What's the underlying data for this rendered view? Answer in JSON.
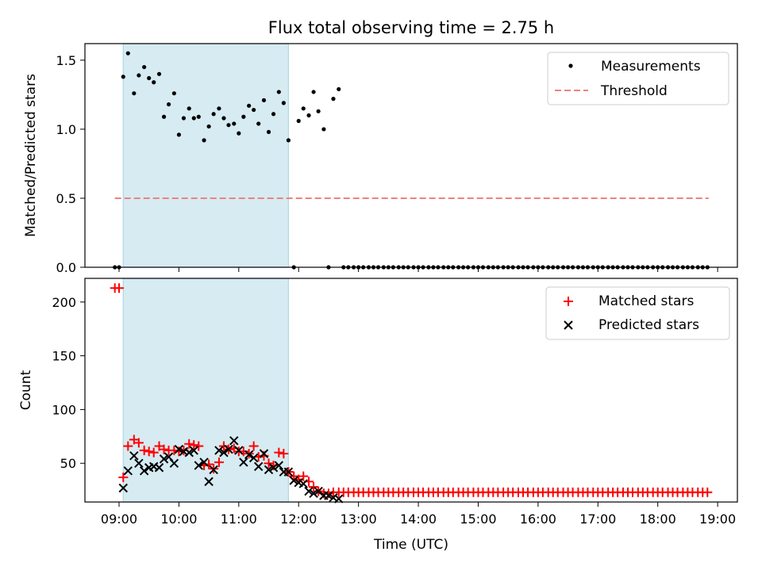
{
  "title": "Flux total observing time = 2.75 h",
  "colors": {
    "measurement": "#000000",
    "threshold": "#f08080",
    "matched": "#ff0000",
    "predicted": "#000000",
    "observing_span": "#add8e6"
  },
  "chart_data": [
    {
      "type": "scatter",
      "ylabel": "Matched/Predicted stars",
      "xlabel": "",
      "ylim": [
        0,
        1.62
      ],
      "yticks": [
        "0.0",
        "0.5",
        "1.0",
        "1.5"
      ],
      "xlim": [
        8.43,
        19.33
      ],
      "observing_span": [
        9.07,
        11.83
      ],
      "legend_position": "upper right",
      "legend": [
        "Measurements",
        "Threshold"
      ],
      "threshold": {
        "name": "Threshold",
        "value": 0.5,
        "x_range": [
          8.93,
          18.85
        ]
      },
      "series": [
        {
          "name": "Measurements",
          "x": [
            8.93,
            9.0,
            9.07,
            9.15,
            9.25,
            9.33,
            9.42,
            9.5,
            9.58,
            9.67,
            9.75,
            9.83,
            9.92,
            10.0,
            10.08,
            10.17,
            10.25,
            10.33,
            10.42,
            10.5,
            10.58,
            10.67,
            10.75,
            10.83,
            10.92,
            11.0,
            11.08,
            11.17,
            11.25,
            11.33,
            11.42,
            11.5,
            11.58,
            11.67,
            11.75,
            11.83,
            11.92,
            12.0,
            12.08,
            12.17,
            12.25,
            12.33,
            12.42,
            12.5,
            12.58,
            12.67,
            12.75,
            12.83,
            12.92,
            13.0,
            13.08,
            13.17,
            13.25,
            13.33,
            13.42,
            13.5,
            13.58,
            13.67,
            13.75,
            13.83,
            13.92,
            14.0,
            14.08,
            14.17,
            14.25,
            14.33,
            14.42,
            14.5,
            14.58,
            14.67,
            14.75,
            14.83,
            14.92,
            15.0,
            15.08,
            15.17,
            15.25,
            15.33,
            15.42,
            15.5,
            15.58,
            15.67,
            15.75,
            15.83,
            15.92,
            16.0,
            16.08,
            16.17,
            16.25,
            16.33,
            16.42,
            16.5,
            16.58,
            16.67,
            16.75,
            16.83,
            16.92,
            17.0,
            17.08,
            17.17,
            17.25,
            17.33,
            17.42,
            17.5,
            17.58,
            17.67,
            17.75,
            17.83,
            17.92,
            18.0,
            18.08,
            18.17,
            18.25,
            18.33,
            18.42,
            18.5,
            18.58,
            18.67,
            18.75,
            18.83
          ],
          "y": [
            0.0,
            0.0,
            1.38,
            1.55,
            1.26,
            1.39,
            1.45,
            1.37,
            1.34,
            1.4,
            1.09,
            1.18,
            1.26,
            0.96,
            1.08,
            1.15,
            1.08,
            1.09,
            0.92,
            1.02,
            1.11,
            1.15,
            1.08,
            1.03,
            1.04,
            0.97,
            1.09,
            1.17,
            1.14,
            1.04,
            1.21,
            0.98,
            1.11,
            1.27,
            1.19,
            0.92,
            0.0,
            1.06,
            1.15,
            1.1,
            1.27,
            1.13,
            1.0,
            0.0,
            1.22,
            1.29,
            0.0,
            0.0,
            0.0,
            0.0,
            0.0,
            0.0,
            0.0,
            0.0,
            0.0,
            0.0,
            0.0,
            0.0,
            0.0,
            0.0,
            0.0,
            0.0,
            0.0,
            0.0,
            0.0,
            0.0,
            0.0,
            0.0,
            0.0,
            0.0,
            0.0,
            0.0,
            0.0,
            0.0,
            0.0,
            0.0,
            0.0,
            0.0,
            0.0,
            0.0,
            0.0,
            0.0,
            0.0,
            0.0,
            0.0,
            0.0,
            0.0,
            0.0,
            0.0,
            0.0,
            0.0,
            0.0,
            0.0,
            0.0,
            0.0,
            0.0,
            0.0,
            0.0,
            0.0,
            0.0,
            0.0,
            0.0,
            0.0,
            0.0,
            0.0,
            0.0,
            0.0,
            0.0,
            0.0,
            0.0,
            0.0,
            0.0,
            0.0,
            0.0,
            0.0,
            0.0,
            0.0,
            0.0,
            0.0,
            0.0
          ]
        }
      ]
    },
    {
      "type": "scatter",
      "ylabel": "Count",
      "xlabel": "Time (UTC)",
      "ylim": [
        14,
        222
      ],
      "yticks": [
        "50",
        "100",
        "150",
        "200"
      ],
      "xlim": [
        8.43,
        19.33
      ],
      "xticks": [
        "09:00",
        "10:00",
        "11:00",
        "12:00",
        "13:00",
        "14:00",
        "15:00",
        "16:00",
        "17:00",
        "18:00",
        "19:00"
      ],
      "observing_span": [
        9.07,
        11.83
      ],
      "legend_position": "upper right",
      "legend": [
        "Matched stars",
        "Predicted stars"
      ],
      "series": [
        {
          "name": "Matched stars",
          "x": [
            8.93,
            9.0,
            9.07,
            9.15,
            9.25,
            9.33,
            9.42,
            9.5,
            9.58,
            9.67,
            9.75,
            9.83,
            9.92,
            10.0,
            10.08,
            10.17,
            10.25,
            10.33,
            10.42,
            10.5,
            10.58,
            10.67,
            10.75,
            10.83,
            10.92,
            11.0,
            11.08,
            11.17,
            11.25,
            11.33,
            11.42,
            11.5,
            11.58,
            11.67,
            11.75,
            11.83,
            11.92,
            12.0,
            12.08,
            12.17,
            12.25,
            12.33,
            12.42,
            12.5,
            12.58,
            12.67,
            12.75,
            12.83,
            12.92,
            13.0,
            13.08,
            13.17,
            13.25,
            13.33,
            13.42,
            13.5,
            13.58,
            13.67,
            13.75,
            13.83,
            13.92,
            14.0,
            14.08,
            14.17,
            14.25,
            14.33,
            14.42,
            14.5,
            14.58,
            14.67,
            14.75,
            14.83,
            14.92,
            15.0,
            15.08,
            15.17,
            15.25,
            15.33,
            15.42,
            15.5,
            15.58,
            15.67,
            15.75,
            15.83,
            15.92,
            16.0,
            16.08,
            16.17,
            16.25,
            16.33,
            16.42,
            16.5,
            16.58,
            16.67,
            16.75,
            16.83,
            16.92,
            17.0,
            17.08,
            17.17,
            17.25,
            17.33,
            17.42,
            17.5,
            17.58,
            17.67,
            17.75,
            17.83,
            17.92,
            18.0,
            18.08,
            18.17,
            18.25,
            18.33,
            18.42,
            18.5,
            18.58,
            18.67,
            18.75,
            18.83
          ],
          "y": [
            213,
            213,
            37,
            66,
            72,
            69,
            62,
            61,
            60,
            66,
            63,
            62,
            62,
            61,
            62,
            68,
            67,
            66,
            48,
            49,
            45,
            51,
            66,
            63,
            64,
            61,
            61,
            59,
            66,
            56,
            57,
            50,
            48,
            60,
            59,
            42,
            38,
            35,
            38,
            33,
            28,
            24,
            22,
            22,
            23,
            23,
            23,
            23,
            23,
            23,
            23,
            23,
            23,
            23,
            23,
            23,
            23,
            23,
            23,
            23,
            23,
            23,
            23,
            23,
            23,
            23,
            23,
            23,
            23,
            23,
            23,
            23,
            23,
            23,
            23,
            23,
            23,
            23,
            23,
            23,
            23,
            23,
            23,
            23,
            23,
            23,
            23,
            23,
            23,
            23,
            23,
            23,
            23,
            23,
            23,
            23,
            23,
            23,
            23,
            23,
            23,
            23,
            23,
            23,
            23,
            23,
            23,
            23,
            23,
            23,
            23,
            23,
            23,
            23,
            23,
            23,
            23,
            23,
            23,
            23
          ]
        },
        {
          "name": "Predicted stars",
          "x": [
            9.07,
            9.15,
            9.25,
            9.33,
            9.42,
            9.5,
            9.58,
            9.67,
            9.75,
            9.83,
            9.92,
            10.0,
            10.08,
            10.17,
            10.25,
            10.33,
            10.42,
            10.5,
            10.58,
            10.67,
            10.75,
            10.83,
            10.92,
            11.0,
            11.08,
            11.17,
            11.25,
            11.33,
            11.42,
            11.5,
            11.58,
            11.67,
            11.75,
            11.83,
            11.92,
            12.0,
            12.08,
            12.17,
            12.25,
            12.33,
            12.42,
            12.5,
            12.58,
            12.67
          ],
          "y": [
            27,
            43,
            57,
            50,
            43,
            46,
            47,
            46,
            54,
            56,
            50,
            63,
            61,
            60,
            62,
            48,
            51,
            33,
            44,
            62,
            60,
            63,
            71,
            62,
            51,
            58,
            55,
            47,
            59,
            44,
            46,
            48,
            42,
            42,
            34,
            32,
            31,
            24,
            22,
            24,
            20,
            20,
            18,
            17
          ]
        }
      ]
    }
  ]
}
